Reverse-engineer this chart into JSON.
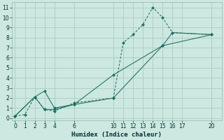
{
  "xlabel": "Humidex (Indice chaleur)",
  "bg_color": "#cce8e0",
  "grid_color": "#aaccC4",
  "line_color": "#1a7060",
  "xlim": [
    -0.3,
    21
  ],
  "ylim": [
    -0.2,
    11.5
  ],
  "xticks": [
    0,
    1,
    2,
    3,
    4,
    6,
    10,
    11,
    12,
    13,
    14,
    15,
    16,
    17,
    20
  ],
  "yticks": [
    0,
    1,
    2,
    3,
    4,
    5,
    6,
    7,
    8,
    9,
    10,
    11
  ],
  "line1_x": [
    0,
    1,
    2,
    3,
    4,
    6,
    10,
    11,
    12,
    13,
    14,
    15,
    16,
    20
  ],
  "line1_y": [
    0.2,
    0.35,
    2.1,
    0.85,
    0.7,
    1.5,
    2.0,
    7.5,
    8.3,
    9.3,
    11.0,
    10.0,
    8.5,
    8.3
  ],
  "line2_x": [
    0,
    2,
    3,
    4,
    6,
    10,
    15,
    16,
    20
  ],
  "line2_y": [
    0.2,
    2.1,
    2.7,
    1.0,
    1.35,
    4.3,
    7.2,
    8.5,
    8.3
  ],
  "line3_x": [
    0,
    2,
    3,
    4,
    6,
    10,
    15,
    20
  ],
  "line3_y": [
    0.2,
    2.1,
    0.85,
    0.85,
    1.35,
    2.0,
    7.2,
    8.3
  ]
}
